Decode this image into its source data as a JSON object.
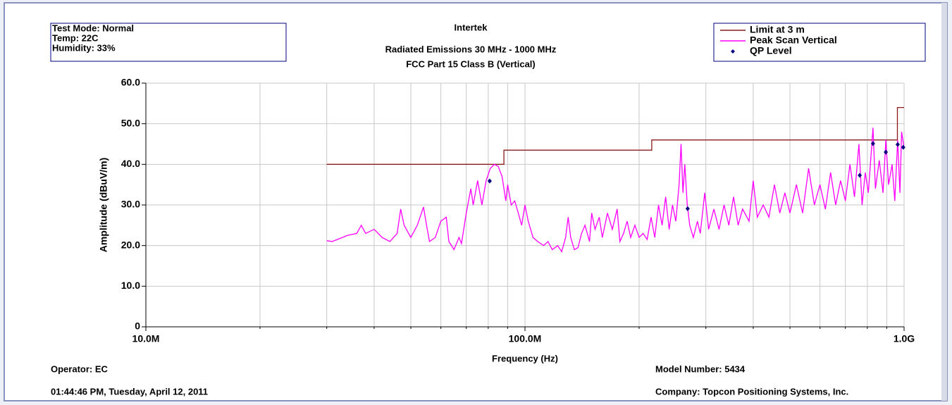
{
  "chart_data": {
    "type": "line",
    "title": "Intertek",
    "subtitle": [
      "Radiated Emissions 30 MHz - 1000 MHz",
      "FCC Part 15 Class B (Vertical)"
    ],
    "info": [
      "Test Mode: Normal",
      "Temp: 22C",
      "Humidity: 33%"
    ],
    "xlabel": "Frequency (Hz)",
    "ylabel": "Amplitude (dBuV/m)",
    "footer": {
      "operator": "Operator: EC",
      "date": "01:44:46 PM, Tuesday, April 12, 2011",
      "model": "Model Number: 5434",
      "company": "Company:  Topcon Positioning Systems, Inc."
    },
    "xscale": "log",
    "xlim": [
      10000000,
      1000000000
    ],
    "xticks": [
      {
        "value": 10000000,
        "label": "10.0M"
      },
      {
        "value": 100000000,
        "label": "100.0M"
      },
      {
        "value": 1000000000,
        "label": "1.0G"
      }
    ],
    "xgrid_minor": [
      20000000,
      30000000,
      40000000,
      50000000,
      60000000,
      70000000,
      80000000,
      90000000,
      200000000,
      300000000,
      400000000,
      500000000,
      600000000,
      700000000,
      800000000,
      900000000
    ],
    "ylim": [
      0,
      60
    ],
    "yticks": [
      {
        "value": 0,
        "label": "0"
      },
      {
        "value": 10,
        "label": "10.0"
      },
      {
        "value": 20,
        "label": "20.0"
      },
      {
        "value": 30,
        "label": "30.0"
      },
      {
        "value": 40,
        "label": "40.0"
      },
      {
        "value": 50,
        "label": "50.0"
      },
      {
        "value": 60,
        "label": "60.0"
      }
    ],
    "grid": true,
    "legend": "top-right",
    "series": [
      {
        "name": "Limit at 3 m",
        "color": "#8b1a1a",
        "kind": "line",
        "x": [
          30000000,
          88000000,
          88000000,
          216000000,
          216000000,
          960000000,
          960000000,
          1000000000
        ],
        "values": [
          40,
          40,
          43.5,
          43.5,
          46,
          46,
          54,
          54
        ]
      },
      {
        "name": "Peak Scan Vertical",
        "color": "#ff00ff",
        "kind": "line",
        "x": [
          30000000,
          31000000,
          32000000,
          34000000,
          36000000,
          37000000,
          38000000,
          40000000,
          42000000,
          44000000,
          46000000,
          47000000,
          48000000,
          50000000,
          52000000,
          54000000,
          55000000,
          56000000,
          58000000,
          60000000,
          62000000,
          63000000,
          65000000,
          67000000,
          68000000,
          70000000,
          72000000,
          73000000,
          75000000,
          77000000,
          79000000,
          81000000,
          83000000,
          85000000,
          87000000,
          89000000,
          90000000,
          92000000,
          94000000,
          96000000,
          98000000,
          100000000,
          102000000,
          105000000,
          108000000,
          112000000,
          115000000,
          118000000,
          122000000,
          125000000,
          128000000,
          130000000,
          132000000,
          135000000,
          138000000,
          141000000,
          144000000,
          148000000,
          150000000,
          153000000,
          157000000,
          160000000,
          165000000,
          170000000,
          175000000,
          178000000,
          182000000,
          186000000,
          190000000,
          195000000,
          200000000,
          205000000,
          210000000,
          215000000,
          220000000,
          225000000,
          230000000,
          235000000,
          240000000,
          245000000,
          250000000,
          255000000,
          258000000,
          261000000,
          264000000,
          268000000,
          272000000,
          278000000,
          285000000,
          290000000,
          298000000,
          305000000,
          315000000,
          325000000,
          335000000,
          345000000,
          355000000,
          365000000,
          375000000,
          390000000,
          400000000,
          410000000,
          425000000,
          440000000,
          455000000,
          470000000,
          485000000,
          500000000,
          520000000,
          540000000,
          560000000,
          580000000,
          600000000,
          620000000,
          640000000,
          660000000,
          680000000,
          700000000,
          720000000,
          740000000,
          760000000,
          775000000,
          790000000,
          805000000,
          828000000,
          840000000,
          860000000,
          880000000,
          895000000,
          910000000,
          930000000,
          945000000,
          962000000,
          975000000,
          985000000,
          1000000000
        ],
        "values": [
          21.2,
          21,
          21.5,
          22.5,
          23,
          25,
          23,
          24,
          22,
          21,
          23,
          29,
          25,
          22,
          25,
          29.5,
          25,
          21,
          22,
          26,
          27,
          21,
          19,
          22,
          20.5,
          28,
          34,
          30,
          36,
          30,
          36,
          39,
          40,
          39.5,
          37,
          31,
          35,
          30,
          31,
          28,
          25,
          30,
          26,
          22,
          21,
          20,
          21,
          19,
          20,
          18.5,
          22,
          27,
          22,
          19,
          19.5,
          23,
          25,
          21,
          28,
          24,
          27,
          22,
          28,
          24,
          29,
          21,
          23,
          26,
          22,
          25,
          22,
          23,
          21.5,
          27,
          22,
          30,
          25,
          32,
          24,
          30,
          26,
          35,
          45,
          33,
          40,
          30,
          25,
          22,
          26,
          23,
          33,
          24,
          29,
          24,
          30,
          25,
          32,
          25,
          29,
          26,
          36,
          27,
          30,
          27,
          35,
          28,
          33,
          28,
          35,
          28,
          39,
          30,
          35,
          29,
          38,
          30,
          36,
          31,
          40,
          32,
          45,
          30,
          38,
          33,
          49,
          34,
          41,
          33,
          46,
          35,
          40,
          31,
          46,
          33,
          48,
          44
        ]
      },
      {
        "name": "QP Level",
        "color": "#000080",
        "kind": "scatter",
        "x": [
          80700000,
          268600000,
          764000000,
          828000000,
          895000000,
          962000000,
          995000000
        ],
        "values": [
          35.9,
          29.1,
          37.3,
          45.1,
          43,
          44.9,
          44.2
        ]
      }
    ]
  }
}
